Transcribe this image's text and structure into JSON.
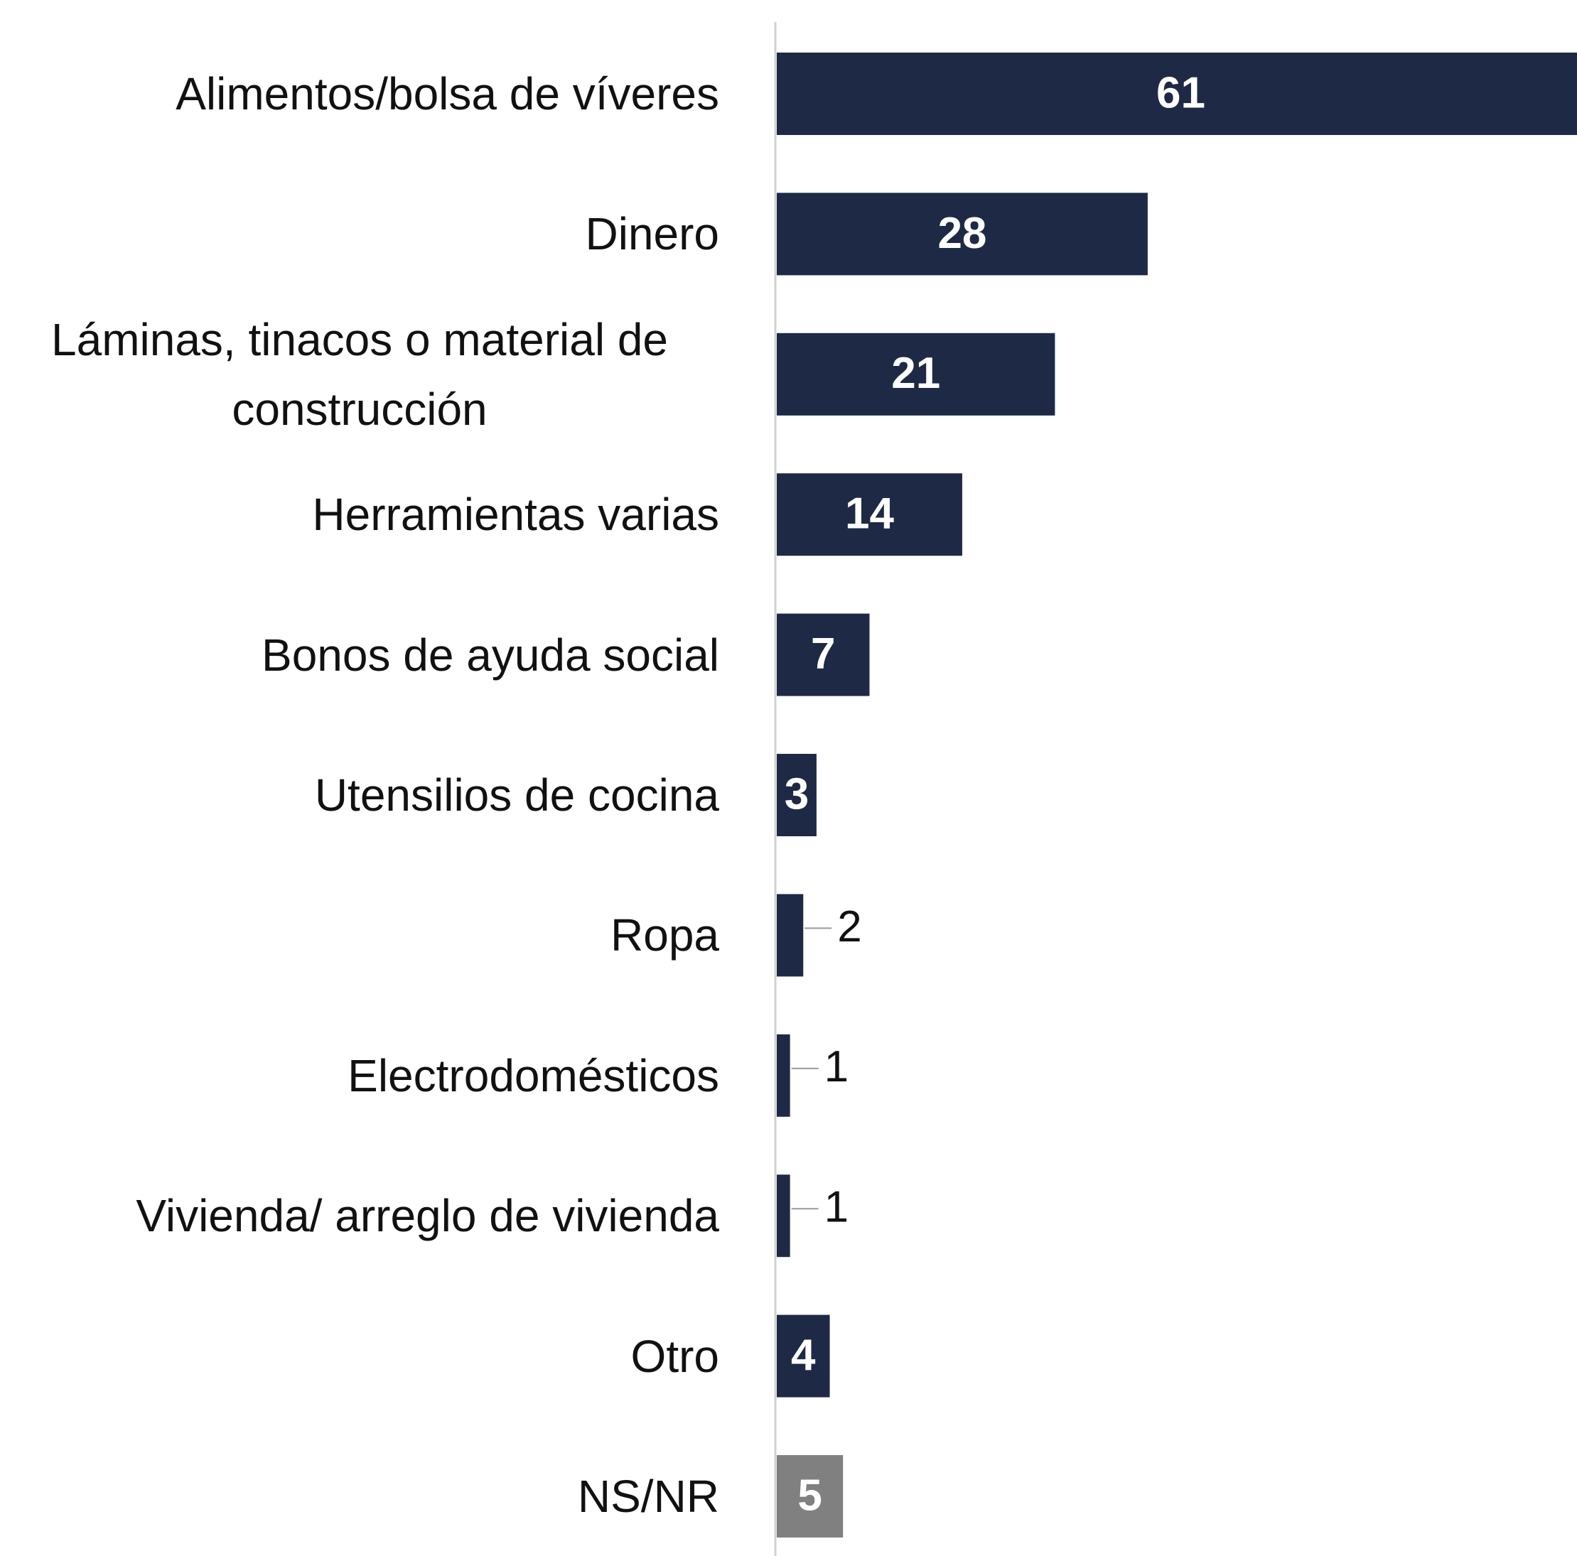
{
  "chart_data": {
    "type": "bar",
    "orientation": "horizontal",
    "categories": [
      "Alimentos/bolsa de víveres",
      "Dinero",
      "Láminas, tinacos o material de construcción",
      "Herramientas varias",
      "Bonos de ayuda social",
      "Utensilios de cocina",
      "Ropa",
      "Electrodomésticos",
      "Vivienda/ arreglo de vivienda",
      "Otro",
      "NS/NR"
    ],
    "values": [
      61,
      28,
      21,
      14,
      7,
      3,
      2,
      1,
      1,
      4,
      5
    ],
    "colors": [
      "#1e2a45",
      "#1e2a45",
      "#1e2a45",
      "#1e2a45",
      "#1e2a45",
      "#1e2a45",
      "#1e2a45",
      "#1e2a45",
      "#1e2a45",
      "#1e2a45",
      "#808080"
    ],
    "grid": false
  }
}
